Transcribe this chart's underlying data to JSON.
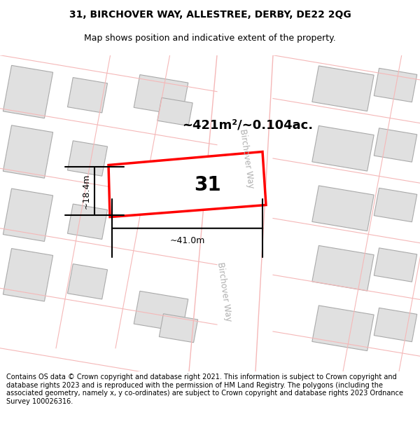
{
  "title": "31, BIRCHOVER WAY, ALLESTREE, DERBY, DE22 2QG",
  "subtitle": "Map shows position and indicative extent of the property.",
  "footer": "Contains OS data © Crown copyright and database right 2021. This information is subject to Crown copyright and database rights 2023 and is reproduced with the permission of HM Land Registry. The polygons (including the associated geometry, namely x, y co-ordinates) are subject to Crown copyright and database rights 2023 Ordnance Survey 100026316.",
  "bg_color": "#ffffff",
  "title_fontsize": 10,
  "subtitle_fontsize": 9,
  "footer_fontsize": 7,
  "area_label": "~421m²/~0.104ac.",
  "number_label": "31",
  "width_label": "~41.0m",
  "height_label": "~18.4m",
  "road_label": "Birchover Way",
  "road_color": "#ffffff",
  "road_edge_color": "#f5b8b8",
  "building_fill": "#e0e0e0",
  "building_edge": "#aaaaaa",
  "street_line_color": "#f5b8b8",
  "prop_edge": "#ff0000",
  "prop_fill": "#ffffff",
  "dim_color": "#000000"
}
